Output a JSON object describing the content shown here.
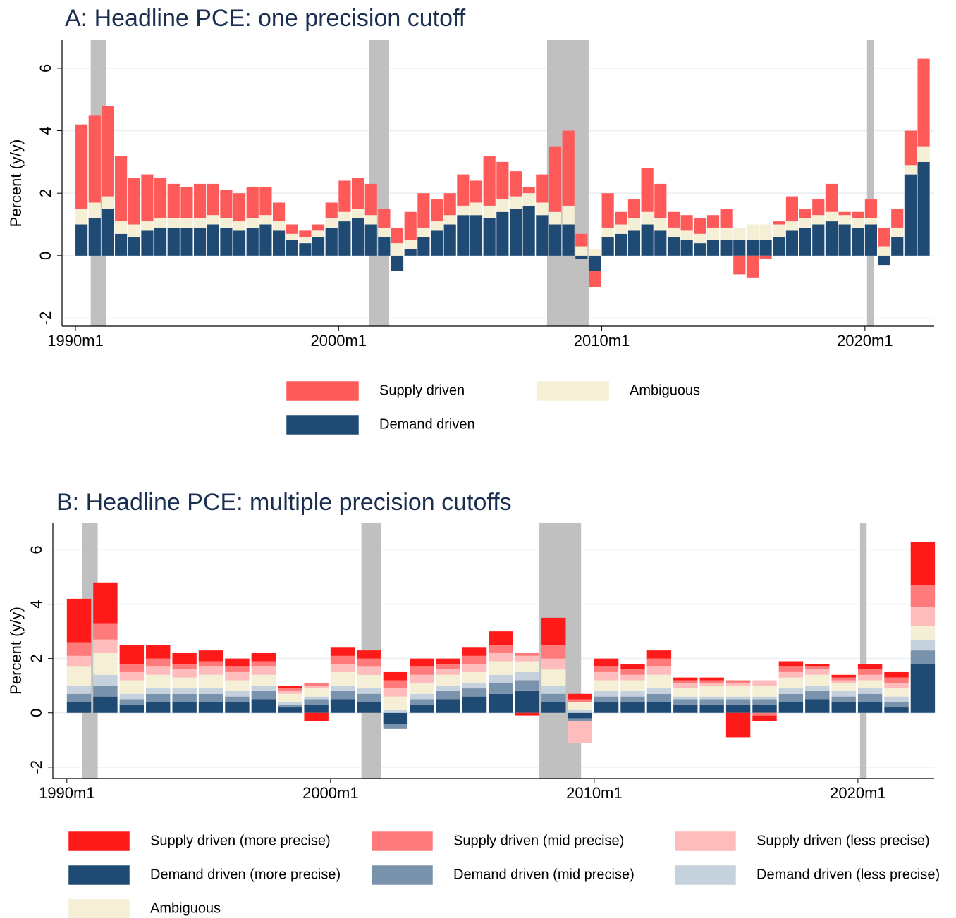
{
  "chart_data": [
    {
      "type": "stacked-bar",
      "title": "A: Headline PCE: one precision cutoff",
      "y_label": "Percent (y/y)",
      "xlim": [
        1989.49,
        2022.63
      ],
      "xticks": [
        {
          "value": 1990,
          "label": "1990m1"
        },
        {
          "value": 2000,
          "label": "2000m1"
        },
        {
          "value": 2010,
          "label": "2010m1"
        },
        {
          "value": 2020,
          "label": "2020m1"
        }
      ],
      "ylim": [
        -2.26,
        6.9
      ],
      "yticks": [
        -2,
        0,
        2,
        4,
        6
      ],
      "grid": true,
      "recessions": [
        [
          1990.58,
          1991.17
        ],
        [
          2001.17,
          2001.92
        ],
        [
          2007.92,
          2009.5
        ],
        [
          2020.08,
          2020.33
        ]
      ],
      "recession_color": "#c0c0c0",
      "x": [
        1990.0,
        1990.5,
        1991.0,
        1991.5,
        1992.0,
        1992.5,
        1993.0,
        1993.5,
        1994.0,
        1994.5,
        1995.0,
        1995.5,
        1996.0,
        1996.5,
        1997.0,
        1997.5,
        1998.0,
        1998.5,
        1999.0,
        1999.5,
        2000.0,
        2000.5,
        2001.0,
        2001.5,
        2002.0,
        2002.5,
        2003.0,
        2003.5,
        2004.0,
        2004.5,
        2005.0,
        2005.5,
        2006.0,
        2006.5,
        2007.0,
        2007.5,
        2008.0,
        2008.5,
        2009.0,
        2009.5,
        2010.0,
        2010.5,
        2011.0,
        2011.5,
        2012.0,
        2012.5,
        2013.0,
        2013.5,
        2014.0,
        2014.5,
        2015.0,
        2015.5,
        2016.0,
        2016.5,
        2017.0,
        2017.5,
        2018.0,
        2018.5,
        2019.0,
        2019.5,
        2020.0,
        2020.5,
        2021.0,
        2021.5,
        2022.0
      ],
      "series": [
        {
          "name": "Demand driven",
          "color": "#1f4a73",
          "values": [
            1.0,
            1.2,
            1.5,
            0.7,
            0.6,
            0.8,
            0.9,
            0.9,
            0.9,
            0.9,
            1.0,
            0.9,
            0.8,
            0.9,
            1.0,
            0.8,
            0.5,
            0.4,
            0.6,
            0.9,
            1.1,
            1.2,
            1.0,
            0.6,
            -0.5,
            0.2,
            0.6,
            0.8,
            1.0,
            1.3,
            1.3,
            1.2,
            1.4,
            1.5,
            1.6,
            1.3,
            1.0,
            1.0,
            -0.1,
            -0.5,
            0.6,
            0.7,
            0.8,
            1.0,
            0.8,
            0.6,
            0.5,
            0.4,
            0.5,
            0.5,
            0.5,
            0.5,
            0.5,
            0.6,
            0.8,
            0.9,
            1.0,
            1.1,
            1.0,
            0.9,
            1.0,
            -0.3,
            0.6,
            2.6,
            3.0
          ]
        },
        {
          "name": "Ambiguous",
          "color": "#f5efd5",
          "values": [
            0.5,
            0.5,
            0.4,
            0.4,
            0.4,
            0.3,
            0.3,
            0.3,
            0.3,
            0.3,
            0.3,
            0.3,
            0.3,
            0.3,
            0.3,
            0.3,
            0.2,
            0.2,
            0.2,
            0.3,
            0.3,
            0.3,
            0.3,
            0.3,
            0.4,
            0.3,
            0.3,
            0.3,
            0.3,
            0.3,
            0.4,
            0.4,
            0.4,
            0.4,
            0.4,
            0.4,
            0.4,
            0.6,
            0.3,
            0.2,
            0.3,
            0.3,
            0.4,
            0.4,
            0.4,
            0.3,
            0.3,
            0.3,
            0.4,
            0.4,
            0.4,
            0.5,
            0.5,
            0.4,
            0.3,
            0.3,
            0.3,
            0.3,
            0.3,
            0.3,
            0.2,
            0.3,
            0.3,
            0.3,
            0.5
          ]
        },
        {
          "name": "Supply driven",
          "color": "#ff5a5a",
          "values": [
            2.7,
            2.8,
            2.9,
            2.1,
            1.5,
            1.5,
            1.3,
            1.1,
            1.0,
            1.1,
            1.0,
            0.9,
            0.9,
            1.0,
            0.9,
            0.6,
            0.3,
            0.2,
            0.2,
            0.5,
            1.0,
            1.0,
            1.0,
            0.6,
            0.5,
            0.9,
            1.1,
            0.7,
            0.7,
            1.0,
            0.7,
            1.6,
            1.2,
            0.8,
            0.2,
            0.9,
            2.1,
            2.4,
            0.4,
            -0.5,
            1.1,
            0.4,
            0.6,
            1.4,
            1.1,
            0.5,
            0.5,
            0.5,
            0.4,
            0.6,
            -0.6,
            -0.7,
            -0.1,
            0.1,
            0.8,
            0.3,
            0.5,
            0.9,
            0.1,
            0.2,
            0.6,
            0.6,
            0.6,
            1.1,
            2.8
          ]
        }
      ]
    },
    {
      "type": "stacked-bar",
      "title": "B: Headline PCE: multiple precision cutoffs",
      "y_label": "Percent (y/y)",
      "xlim": [
        1989.47,
        2022.89
      ],
      "xticks": [
        {
          "value": 1990,
          "label": "1990m1"
        },
        {
          "value": 2000,
          "label": "2000m1"
        },
        {
          "value": 2010,
          "label": "2010m1"
        },
        {
          "value": 2020,
          "label": "2020m1"
        }
      ],
      "ylim": [
        -2.42,
        7.0
      ],
      "yticks": [
        -2,
        0,
        2,
        4,
        6
      ],
      "grid": true,
      "recessions": [
        [
          1990.58,
          1991.17
        ],
        [
          2001.17,
          2001.92
        ],
        [
          2007.92,
          2009.5
        ],
        [
          2020.08,
          2020.33
        ]
      ],
      "recession_color": "#c0c0c0",
      "x": [
        1990,
        1991,
        1992,
        1993,
        1994,
        1995,
        1996,
        1997,
        1998,
        1999,
        2000,
        2001,
        2002,
        2003,
        2004,
        2005,
        2006,
        2007,
        2008,
        2009,
        2010,
        2011,
        2012,
        2013,
        2014,
        2015,
        2016,
        2017,
        2018,
        2019,
        2020,
        2021,
        2022
      ],
      "series": [
        {
          "name": "Demand driven (more precise)",
          "color": "#1f4a73",
          "values": [
            0.4,
            0.6,
            0.3,
            0.4,
            0.4,
            0.4,
            0.4,
            0.5,
            0.2,
            0.3,
            0.5,
            0.4,
            -0.4,
            0.3,
            0.5,
            0.6,
            0.7,
            0.8,
            0.4,
            -0.2,
            0.4,
            0.4,
            0.4,
            0.3,
            0.3,
            0.3,
            0.3,
            0.4,
            0.5,
            0.4,
            0.4,
            0.2,
            1.8
          ]
        },
        {
          "name": "Demand driven (mid precise)",
          "color": "#7a93ad",
          "values": [
            0.3,
            0.4,
            0.2,
            0.3,
            0.3,
            0.3,
            0.2,
            0.3,
            0.1,
            0.2,
            0.3,
            0.3,
            -0.2,
            0.2,
            0.3,
            0.3,
            0.4,
            0.4,
            0.3,
            -0.1,
            0.2,
            0.2,
            0.3,
            0.2,
            0.2,
            0.2,
            0.2,
            0.3,
            0.3,
            0.2,
            0.3,
            0.2,
            0.5
          ]
        },
        {
          "name": "Demand driven (less precise)",
          "color": "#c5d1dc",
          "values": [
            0.3,
            0.4,
            0.2,
            0.2,
            0.2,
            0.2,
            0.2,
            0.2,
            0.1,
            0.1,
            0.2,
            0.2,
            0.1,
            0.2,
            0.2,
            0.2,
            0.3,
            0.3,
            0.3,
            0.1,
            0.2,
            0.2,
            0.2,
            0.1,
            0.1,
            0.1,
            0.1,
            0.2,
            0.2,
            0.2,
            0.2,
            0.2,
            0.4
          ]
        },
        {
          "name": "Ambiguous",
          "color": "#f5efd5",
          "values": [
            0.7,
            0.8,
            0.5,
            0.5,
            0.4,
            0.5,
            0.4,
            0.4,
            0.3,
            0.3,
            0.5,
            0.5,
            0.5,
            0.4,
            0.4,
            0.4,
            0.5,
            0.4,
            0.6,
            0.3,
            0.4,
            0.4,
            0.5,
            0.3,
            0.4,
            0.4,
            0.4,
            0.4,
            0.4,
            0.3,
            0.3,
            0.3,
            0.5
          ]
        },
        {
          "name": "Supply driven (less precise)",
          "color": "#ffbcbc",
          "values": [
            0.4,
            0.5,
            0.3,
            0.3,
            0.3,
            0.3,
            0.3,
            0.3,
            0.1,
            0.1,
            0.3,
            0.3,
            0.3,
            0.3,
            0.2,
            0.3,
            0.3,
            0.2,
            0.4,
            -0.8,
            0.3,
            0.2,
            0.3,
            0.2,
            0.1,
            0.1,
            0.2,
            0.2,
            0.2,
            0.1,
            0.2,
            0.2,
            0.7
          ]
        },
        {
          "name": "Supply driven (mid precise)",
          "color": "#ff7b7b",
          "values": [
            0.5,
            0.6,
            0.3,
            0.3,
            0.2,
            0.2,
            0.2,
            0.2,
            0.1,
            0.1,
            0.3,
            0.3,
            0.3,
            0.3,
            0.2,
            0.3,
            0.3,
            0.1,
            0.5,
            0.1,
            0.2,
            0.2,
            0.3,
            0.1,
            0.1,
            0.1,
            -0.1,
            0.2,
            0.1,
            0.1,
            0.2,
            0.2,
            0.8
          ]
        },
        {
          "name": "Supply driven (more precise)",
          "color": "#ff1a1a",
          "values": [
            1.6,
            1.5,
            0.7,
            0.5,
            0.4,
            0.4,
            0.3,
            0.3,
            0.1,
            -0.3,
            0.3,
            0.3,
            0.3,
            0.3,
            0.2,
            0.3,
            0.5,
            -0.1,
            1.0,
            0.2,
            0.3,
            0.2,
            0.3,
            0.1,
            0.1,
            -0.9,
            -0.2,
            0.2,
            0.1,
            0.1,
            0.2,
            0.2,
            1.6
          ]
        }
      ]
    }
  ]
}
